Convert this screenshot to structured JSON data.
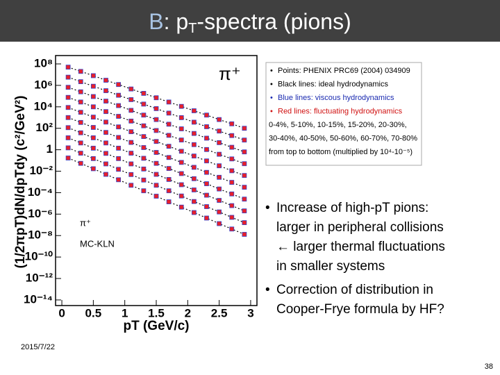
{
  "slide": {
    "title": [
      "B",
      ": p",
      "T",
      "-spectra (pions)"
    ],
    "legend_lines": [
      "Points: PHENIX PRC69 (2004) 034909",
      "Black lines: ideal hydrodynamics",
      "Blue lines: viscous hydrodynamics",
      "Red lines: fluctuating hydrodynamics",
      "0-4%, 5-10%, 10-15%, 15-20%, 20-30%,",
      "30-40%, 40-50%, 50-60%, 60-70%, 70-80%",
      "from top to bottom (multiplied by 10⁴-10⁻⁵)"
    ],
    "bullets": [
      [
        "Increase of high-pT pions:",
        "larger in peripheral collisions",
        "← larger thermal fluctuations",
        "in smaller systems"
      ],
      [
        "Correction of distribution in",
        "Cooper-Frye formula by HF?"
      ]
    ],
    "date": "2015/7/22",
    "page": "38"
  },
  "chart_data": {
    "type": "scatter",
    "x_label": "pT (GeV/c)",
    "y_label": "(1/2πpT)dN/dpTdy (c²/GeV²)",
    "annotations": [
      "π⁺",
      "π⁺",
      "MC-KLN"
    ],
    "log_y": true,
    "xlim": [
      -0.1,
      3.1
    ],
    "ylim": [
      3e-15,
      600000000.0
    ],
    "xticks": [
      0,
      0.5,
      1,
      1.5,
      2,
      2.5,
      3
    ],
    "yticks": [
      {
        "value": 100000000.0,
        "label": "10⁸"
      },
      {
        "value": 1000000.0,
        "label": "10⁶"
      },
      {
        "value": 10000.0,
        "label": "10⁴"
      },
      {
        "value": 100.0,
        "label": "10²"
      },
      1,
      {
        "value": 0.01,
        "label": "10⁻²"
      },
      {
        "value": 0.0001,
        "label": "10⁻⁴"
      },
      {
        "value": 1e-06,
        "label": "10⁻⁶"
      },
      {
        "value": 1e-08,
        "label": "10⁻⁸"
      },
      {
        "value": 1e-10,
        "label": "10⁻¹⁰"
      },
      {
        "value": 1e-12,
        "label": "10⁻¹²"
      },
      {
        "value": 1e-14,
        "label": "10⁻¹⁴"
      }
    ],
    "x": [
      0.1,
      0.3,
      0.5,
      0.7,
      0.9,
      1.1,
      1.3,
      1.5,
      1.7,
      1.9,
      2.1,
      2.3,
      2.5,
      2.7,
      2.9
    ],
    "series": [
      {
        "color": "#e8202a",
        "values": [
          50000000.0,
          20000000.0,
          8000000.0,
          3000000.0,
          1200000.0,
          460000.0,
          180000.0,
          70000.0,
          28000.0,
          11000.0,
          4300.0,
          1700.0,
          650,
          260,
          100
        ]
      },
      {
        "color": "#e8202a",
        "values": [
          5800000.0,
          2200000.0,
          830000.0,
          320000.0,
          120000.0,
          47000.0,
          18000.0,
          6800.0,
          2600.0,
          980,
          370,
          140,
          55,
          21,
          8
        ]
      },
      {
        "color": "#e8202a",
        "values": [
          660000.0,
          250000.0,
          91000.0,
          34000.0,
          13000.0,
          4700.0,
          1700.0,
          650,
          240,
          89,
          33,
          12,
          4.6,
          1.7,
          0.63
        ]
      },
      {
        "color": "#e8202a",
        "values": [
          76000.0,
          28000.0,
          10000.0,
          3600.0,
          1300.0,
          470,
          170,
          62,
          22,
          8.1,
          3,
          1.05,
          0.38,
          0.14,
          0.05
        ]
      },
      {
        "color": "#e8202a",
        "values": [
          8700.0,
          3100.0,
          1100.0,
          380,
          135,
          48,
          17,
          5.9,
          2.1,
          0.72,
          0.26,
          0.091,
          0.032,
          0.011,
          0.004
        ]
      },
      {
        "color": "#e8202a",
        "values": [
          1000,
          350,
          120,
          41,
          14,
          4.8,
          1.6,
          0.56,
          0.19,
          0.066,
          0.023,
          0.0078,
          0.0027,
          0.00091,
          0.00032
        ]
      },
      {
        "color": "#e8202a",
        "values": [
          115,
          38,
          13,
          4.3,
          1.4,
          0.48,
          0.16,
          0.054,
          0.018,
          0.006,
          0.002,
          0.00068,
          0.00022,
          7.6e-05,
          2.5e-05
        ]
      },
      {
        "color": "#e8202a",
        "values": [
          13,
          4.3,
          1.4,
          0.46,
          0.15,
          0.048,
          0.016,
          0.0051,
          0.0017,
          0.00055,
          0.00018,
          5.8e-05,
          1.9e-05,
          6.2e-06,
          2e-06
        ]
      },
      {
        "color": "#e8202a",
        "values": [
          1.5,
          0.48,
          0.15,
          0.048,
          0.015,
          0.0049,
          0.0015,
          0.00049,
          0.00015,
          4.9e-05,
          1.5e-05,
          5e-06,
          1.6e-06,
          5e-07,
          1.6e-07
        ]
      },
      {
        "color": "#e8202a",
        "values": [
          0.17,
          0.054,
          0.017,
          0.0051,
          0.0016,
          0.00049,
          0.00015,
          4.7e-05,
          1.4e-05,
          4.5e-06,
          1.4e-06,
          4.3e-07,
          1.3e-07,
          4.1e-08,
          1.3e-08
        ]
      }
    ]
  }
}
